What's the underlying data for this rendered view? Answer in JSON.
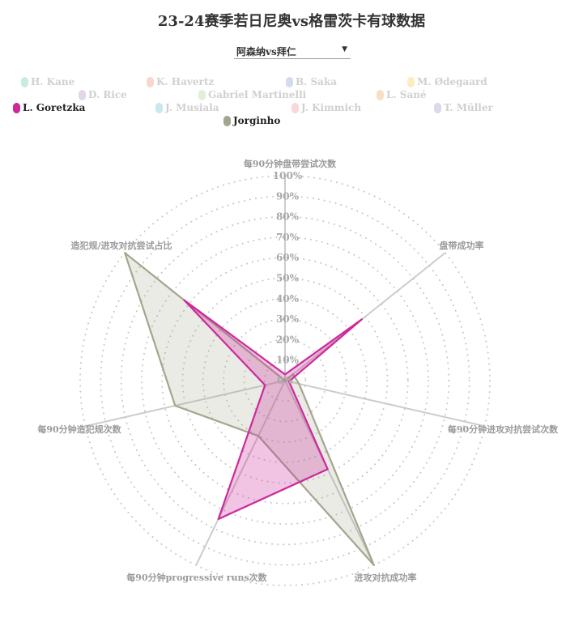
{
  "title": "23-24赛季若日尼奥vs格雷茨卡有球数据",
  "dropdown": {
    "selected": "阿森纳vs拜仁"
  },
  "legend": [
    {
      "name": "H. Kane",
      "color": "#c9ecdf",
      "active": false
    },
    {
      "name": "K. Havertz",
      "color": "#f8d6d0",
      "active": false
    },
    {
      "name": "B. Saka",
      "color": "#d3dcef",
      "active": false
    },
    {
      "name": "M. Ødegaard",
      "color": "#fbecc2",
      "active": false
    },
    {
      "name": "D. Rice",
      "color": "#e2d7ea",
      "active": false
    },
    {
      "name": "Gabriel Martinelli",
      "color": "#e2efd8",
      "active": false
    },
    {
      "name": "L. Sané",
      "color": "#f7dfc5",
      "active": false
    },
    {
      "name": "L. Goretzka",
      "color": "#cc2a9a",
      "active": true
    },
    {
      "name": "J. Musiala",
      "color": "#c8e9ec",
      "active": false
    },
    {
      "name": "J. Kimmich",
      "color": "#f8d8da",
      "active": false
    },
    {
      "name": "T. Müller",
      "color": "#dcd9ea",
      "active": false
    },
    {
      "name": "Jorginho",
      "color": "#a5a58f",
      "active": true
    }
  ],
  "chart_data": {
    "type": "radar",
    "axes": [
      "每90分钟盘带尝试次数",
      "盘带成功率",
      "每90分钟进攻对抗尝试次数",
      "进攻对抗成功率",
      "每90分钟progressive runs次数",
      "每90分钟造犯规次数",
      "造犯规/进攻对抗尝试占比"
    ],
    "ticks": [
      "0%",
      "10%",
      "20%",
      "30%",
      "40%",
      "50%",
      "60%",
      "70%",
      "80%",
      "90%",
      "100%"
    ],
    "range": [
      0,
      100
    ],
    "series": [
      {
        "name": "Jorginho",
        "color": "#a5a58f",
        "values": [
          0,
          5,
          7,
          100,
          30,
          55,
          100
        ]
      },
      {
        "name": "L. Goretzka",
        "color": "#cc2a9a",
        "values": [
          3,
          48,
          2,
          48,
          75,
          10,
          63
        ]
      }
    ]
  }
}
